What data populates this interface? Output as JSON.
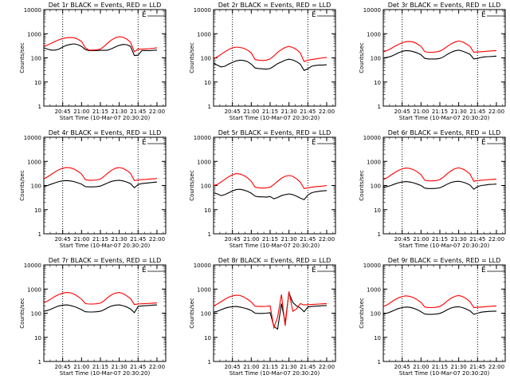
{
  "figure": {
    "xlabel": "Start Time (10-Mar-07 20:30:20)",
    "ylabel": "Counts/sec",
    "x_tick_labels": [
      "20:45",
      "21:00",
      "21:15",
      "21:30",
      "21:45",
      "22:00"
    ],
    "y_tick_labels": [
      "1",
      "10",
      "100",
      "1000",
      "10000"
    ],
    "corner_mark": "E"
  },
  "chart_data": [
    {
      "type": "line",
      "title": "Det 1r BLACK = Events, RED = LLD",
      "xlabel": "Start Time (10-Mar-07 20:30:20)",
      "ylabel": "Counts/sec",
      "y_scale": "log",
      "ylim": [
        1,
        10000
      ],
      "grid": false,
      "x_minutes": [
        0,
        3,
        6,
        9,
        12,
        15,
        18,
        21,
        24,
        27,
        30,
        33,
        36,
        39,
        42,
        45,
        48,
        51,
        54,
        57,
        60,
        63,
        66,
        69,
        72,
        75,
        78,
        81,
        84,
        87,
        90
      ],
      "series": [
        {
          "name": "BLACK",
          "values": [
            260,
            230,
            210,
            210,
            230,
            280,
            330,
            360,
            380,
            350,
            300,
            220,
            200,
            200,
            200,
            205,
            205,
            210,
            240,
            285,
            330,
            360,
            350,
            300,
            125,
            130,
            200,
            200,
            200,
            205,
            210
          ]
        },
        {
          "name": "RED",
          "values": [
            310,
            340,
            400,
            480,
            560,
            630,
            680,
            700,
            680,
            600,
            480,
            260,
            210,
            210,
            215,
            230,
            300,
            420,
            560,
            680,
            760,
            720,
            600,
            440,
            180,
            230,
            230,
            235,
            240,
            250,
            260
          ]
        }
      ]
    },
    {
      "type": "line",
      "title": "Det 2r BLACK = Events, RED = LLD",
      "xlabel": "Start Time (10-Mar-07 20:30:20)",
      "ylabel": "Counts/sec",
      "y_scale": "log",
      "ylim": [
        1,
        10000
      ],
      "grid": false,
      "x_minutes": [
        0,
        3,
        6,
        9,
        12,
        15,
        18,
        21,
        24,
        27,
        30,
        33,
        36,
        39,
        42,
        45,
        48,
        51,
        54,
        57,
        60,
        63,
        66,
        69,
        72,
        75,
        78,
        81,
        84,
        87,
        90
      ],
      "series": [
        {
          "name": "BLACK",
          "values": [
            60,
            50,
            42,
            45,
            55,
            65,
            75,
            80,
            78,
            70,
            55,
            38,
            36,
            35,
            34,
            36,
            45,
            58,
            68,
            80,
            88,
            82,
            70,
            55,
            30,
            35,
            45,
            48,
            50,
            50,
            52
          ]
        },
        {
          "name": "RED",
          "values": [
            95,
            110,
            140,
            180,
            220,
            260,
            280,
            270,
            250,
            210,
            160,
            85,
            80,
            78,
            80,
            90,
            120,
            170,
            220,
            270,
            300,
            270,
            220,
            160,
            70,
            80,
            85,
            90,
            95,
            100,
            105
          ]
        }
      ]
    },
    {
      "type": "line",
      "title": "Det 3r BLACK = Events, RED = LLD",
      "xlabel": "Start Time (10-Mar-07 20:30:20)",
      "ylabel": "Counts/sec",
      "y_scale": "log",
      "ylim": [
        1,
        10000
      ],
      "grid": false,
      "x_minutes": [
        0,
        3,
        6,
        9,
        12,
        15,
        18,
        21,
        24,
        27,
        30,
        33,
        36,
        39,
        42,
        45,
        48,
        51,
        54,
        57,
        60,
        63,
        66,
        69,
        72,
        75,
        78,
        81,
        84,
        87,
        90
      ],
      "series": [
        {
          "name": "BLACK",
          "values": [
            100,
            105,
            115,
            135,
            160,
            185,
            200,
            195,
            180,
            160,
            135,
            95,
            90,
            90,
            90,
            95,
            110,
            140,
            170,
            195,
            210,
            190,
            165,
            140,
            90,
            95,
            105,
            110,
            112,
            115,
            118
          ]
        },
        {
          "name": "RED",
          "values": [
            175,
            200,
            240,
            300,
            360,
            420,
            470,
            480,
            450,
            380,
            300,
            180,
            170,
            170,
            175,
            190,
            230,
            300,
            380,
            450,
            500,
            460,
            380,
            300,
            170,
            175,
            180,
            185,
            190,
            195,
            200
          ]
        }
      ]
    },
    {
      "type": "line",
      "title": "Det 4r BLACK = Events, RED = LLD",
      "xlabel": "Start Time (10-Mar-07 20:30:20)",
      "ylabel": "Counts/sec",
      "y_scale": "log",
      "ylim": [
        1,
        10000
      ],
      "grid": false,
      "x_minutes": [
        0,
        3,
        6,
        9,
        12,
        15,
        18,
        21,
        24,
        27,
        30,
        33,
        36,
        39,
        42,
        45,
        48,
        51,
        54,
        57,
        60,
        63,
        66,
        69,
        72,
        75,
        78,
        81,
        84,
        87,
        90
      ],
      "series": [
        {
          "name": "BLACK",
          "values": [
            90,
            100,
            115,
            130,
            145,
            155,
            160,
            155,
            145,
            130,
            115,
            90,
            88,
            88,
            90,
            95,
            110,
            130,
            150,
            160,
            165,
            155,
            140,
            120,
            80,
            110,
            120,
            125,
            130,
            135,
            140
          ]
        },
        {
          "name": "RED",
          "values": [
            190,
            230,
            290,
            370,
            450,
            520,
            560,
            540,
            480,
            390,
            300,
            175,
            165,
            165,
            170,
            185,
            240,
            330,
            430,
            520,
            560,
            510,
            420,
            320,
            160,
            170,
            175,
            180,
            185,
            190,
            195
          ]
        }
      ]
    },
    {
      "type": "line",
      "title": "Det 5r BLACK = Events, RED = LLD",
      "xlabel": "Start Time (10-Mar-07 20:30:20)",
      "ylabel": "Counts/sec",
      "y_scale": "log",
      "ylim": [
        1,
        10000
      ],
      "grid": false,
      "x_minutes": [
        0,
        3,
        6,
        9,
        12,
        15,
        18,
        21,
        24,
        27,
        30,
        33,
        36,
        39,
        42,
        45,
        48,
        51,
        54,
        57,
        60,
        63,
        66,
        69,
        72,
        75,
        78,
        81,
        84,
        87,
        90
      ],
      "series": [
        {
          "name": "BLACK",
          "values": [
            50,
            45,
            38,
            42,
            50,
            60,
            68,
            70,
            65,
            58,
            48,
            36,
            34,
            34,
            33,
            35,
            28,
            32,
            38,
            42,
            45,
            42,
            36,
            30,
            26,
            40,
            50,
            55,
            58,
            60,
            62
          ]
        },
        {
          "name": "RED",
          "values": [
            100,
            110,
            140,
            180,
            230,
            280,
            310,
            300,
            260,
            210,
            150,
            85,
            80,
            78,
            80,
            85,
            110,
            150,
            200,
            240,
            260,
            240,
            190,
            140,
            75,
            80,
            85,
            90,
            92,
            95,
            100
          ]
        }
      ]
    },
    {
      "type": "line",
      "title": "Det 6r BLACK = Events, RED = LLD",
      "xlabel": "Start Time (10-Mar-07 20:30:20)",
      "ylabel": "Counts/sec",
      "y_scale": "log",
      "ylim": [
        1,
        10000
      ],
      "grid": false,
      "x_minutes": [
        0,
        3,
        6,
        9,
        12,
        15,
        18,
        21,
        24,
        27,
        30,
        33,
        36,
        39,
        42,
        45,
        48,
        51,
        54,
        57,
        60,
        63,
        66,
        69,
        72,
        75,
        78,
        81,
        84,
        87,
        90
      ],
      "series": [
        {
          "name": "BLACK",
          "values": [
            85,
            90,
            100,
            115,
            130,
            140,
            145,
            140,
            130,
            115,
            100,
            78,
            75,
            75,
            76,
            80,
            95,
            115,
            135,
            145,
            150,
            140,
            125,
            105,
            70,
            90,
            100,
            105,
            110,
            112,
            115
          ]
        },
        {
          "name": "RED",
          "values": [
            175,
            210,
            270,
            340,
            420,
            490,
            530,
            510,
            450,
            370,
            280,
            165,
            155,
            155,
            160,
            175,
            225,
            310,
            410,
            500,
            540,
            490,
            400,
            300,
            150,
            160,
            165,
            170,
            175,
            180,
            185
          ]
        }
      ]
    },
    {
      "type": "line",
      "title": "Det 7r BLACK = Events, RED = LLD",
      "xlabel": "Start Time (10-Mar-07 20:30:20)",
      "ylabel": "Counts/sec",
      "y_scale": "log",
      "ylim": [
        1,
        10000
      ],
      "grid": false,
      "x_minutes": [
        0,
        3,
        6,
        9,
        12,
        15,
        18,
        21,
        24,
        27,
        30,
        33,
        36,
        39,
        42,
        45,
        48,
        51,
        54,
        57,
        60,
        63,
        66,
        69,
        72,
        75,
        78,
        81,
        84,
        87,
        90
      ],
      "series": [
        {
          "name": "BLACK",
          "values": [
            120,
            130,
            150,
            175,
            200,
            215,
            220,
            210,
            190,
            165,
            140,
            115,
            112,
            112,
            115,
            120,
            140,
            170,
            200,
            215,
            220,
            205,
            180,
            150,
            105,
            190,
            200,
            205,
            210,
            215,
            220
          ]
        },
        {
          "name": "RED",
          "values": [
            270,
            320,
            400,
            500,
            600,
            680,
            720,
            700,
            620,
            500,
            380,
            250,
            240,
            240,
            245,
            260,
            330,
            450,
            580,
            680,
            720,
            650,
            520,
            400,
            230,
            240,
            245,
            250,
            255,
            260,
            265
          ]
        }
      ]
    },
    {
      "type": "line",
      "title": "Det 8r BLACK = Events, RED = LLD",
      "xlabel": "Start Time (10-Mar-07 20:30:20)",
      "ylabel": "Counts/sec",
      "y_scale": "log",
      "ylim": [
        1,
        10000
      ],
      "grid": false,
      "x_minutes": [
        0,
        3,
        6,
        9,
        12,
        15,
        18,
        21,
        24,
        27,
        30,
        33,
        36,
        39,
        42,
        45,
        48,
        51,
        54,
        57,
        60,
        63,
        66,
        69,
        72,
        75,
        78,
        81,
        84,
        87,
        90
      ],
      "series": [
        {
          "name": "BLACK",
          "values": [
            110,
            120,
            140,
            160,
            175,
            185,
            190,
            180,
            165,
            150,
            130,
            100,
            98,
            98,
            100,
            105,
            28,
            22,
            250,
            40,
            700,
            280,
            200,
            165,
            115,
            180,
            190,
            195,
            200,
            205,
            210
          ]
        },
        {
          "name": "RED",
          "values": [
            200,
            240,
            300,
            380,
            460,
            520,
            560,
            540,
            470,
            380,
            290,
            195,
            190,
            190,
            192,
            200,
            25,
            70,
            600,
            30,
            800,
            120,
            150,
            250,
            220,
            225,
            230,
            235,
            240,
            245,
            250
          ]
        }
      ]
    },
    {
      "type": "line",
      "title": "Det 9r BLACK = Events, RED = LLD",
      "xlabel": "Start Time (10-Mar-07 20:30:20)",
      "ylabel": "Counts/sec",
      "y_scale": "log",
      "ylim": [
        1,
        10000
      ],
      "grid": false,
      "x_minutes": [
        0,
        3,
        6,
        9,
        12,
        15,
        18,
        21,
        24,
        27,
        30,
        33,
        36,
        39,
        42,
        45,
        48,
        51,
        54,
        57,
        60,
        63,
        66,
        69,
        72,
        75,
        78,
        81,
        84,
        87,
        90
      ],
      "series": [
        {
          "name": "BLACK",
          "values": [
            95,
            100,
            115,
            135,
            155,
            170,
            180,
            175,
            160,
            140,
            115,
            92,
            90,
            90,
            92,
            98,
            115,
            140,
            165,
            180,
            185,
            170,
            150,
            125,
            90,
            100,
            110,
            115,
            118,
            120,
            122
          ]
        },
        {
          "name": "RED",
          "values": [
            190,
            220,
            280,
            360,
            430,
            490,
            520,
            500,
            440,
            360,
            280,
            180,
            170,
            170,
            175,
            190,
            240,
            320,
            420,
            500,
            540,
            490,
            400,
            300,
            170,
            175,
            180,
            185,
            190,
            195,
            200
          ]
        }
      ]
    }
  ]
}
